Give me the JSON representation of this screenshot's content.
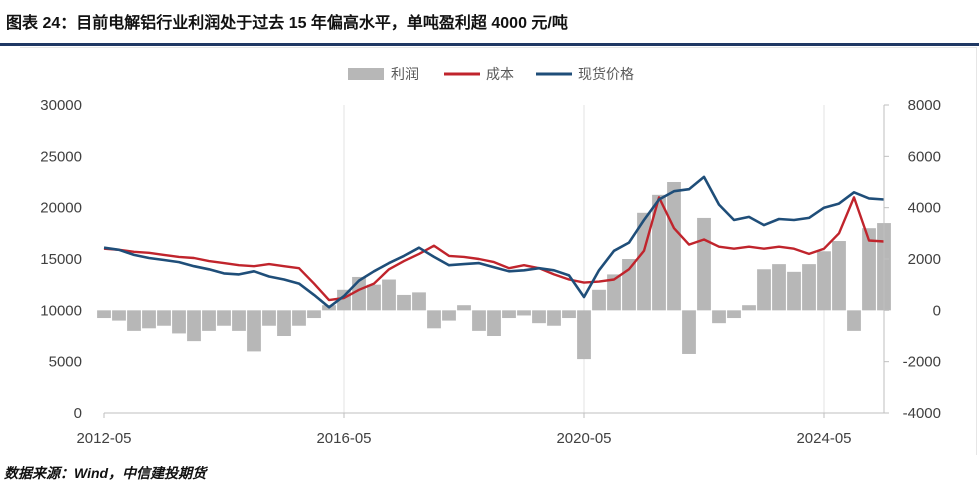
{
  "title": "图表 24：目前电解铝行业利润处于过去 15 年偏高水平，单吨盈利超 4000 元/吨",
  "source": "数据来源：Wind，中信建投期货",
  "colors": {
    "profit": "#b7b7b7",
    "cost": "#c0242c",
    "price": "#1f4e79",
    "title_rule": "#1f3864"
  },
  "chart_data": {
    "type": "line",
    "x_start": "2012-05",
    "x_end": "2025-05",
    "x_ticks": [
      "2012-05",
      "2016-05",
      "2020-05",
      "2024-05"
    ],
    "y_left": {
      "lim": [
        0,
        30000
      ],
      "ticks": [
        "0",
        "5000",
        "10000",
        "15000",
        "20000",
        "25000",
        "30000"
      ]
    },
    "y_right": {
      "lim": [
        -4000,
        8000
      ],
      "ticks": [
        "-4000",
        "-2000",
        "0",
        "2000",
        "4000",
        "6000",
        "8000"
      ]
    },
    "legend": {
      "position": "top",
      "items": [
        "利润",
        "成本",
        "现货价格"
      ]
    },
    "x": [
      "2012-05",
      "2012-08",
      "2012-11",
      "2013-02",
      "2013-05",
      "2013-08",
      "2013-11",
      "2014-02",
      "2014-05",
      "2014-08",
      "2014-11",
      "2015-02",
      "2015-05",
      "2015-08",
      "2015-11",
      "2016-02",
      "2016-05",
      "2016-08",
      "2016-11",
      "2017-02",
      "2017-05",
      "2017-08",
      "2017-11",
      "2018-02",
      "2018-05",
      "2018-08",
      "2018-11",
      "2019-02",
      "2019-05",
      "2019-08",
      "2019-11",
      "2020-02",
      "2020-05",
      "2020-08",
      "2020-11",
      "2021-02",
      "2021-05",
      "2021-08",
      "2021-11",
      "2022-02",
      "2022-05",
      "2022-08",
      "2022-11",
      "2023-02",
      "2023-05",
      "2023-08",
      "2023-11",
      "2024-02",
      "2024-05",
      "2024-08",
      "2024-11",
      "2025-02",
      "2025-05"
    ],
    "series": [
      {
        "name": "利润",
        "kind": "bar",
        "axis": "right",
        "values": [
          -300,
          -400,
          -800,
          -700,
          -600,
          -900,
          -1200,
          -800,
          -600,
          -800,
          -1600,
          -600,
          -1000,
          -600,
          -300,
          200,
          800,
          1300,
          1000,
          1200,
          600,
          700,
          -700,
          -400,
          200,
          -800,
          -1000,
          -300,
          -200,
          -500,
          -600,
          -300,
          -1900,
          800,
          1400,
          2000,
          3800,
          4500,
          5000,
          -1700,
          3600,
          -500,
          -300,
          200,
          1600,
          1800,
          1500,
          1800,
          2300,
          2700,
          -800,
          3200,
          3400
        ]
      },
      {
        "name": "成本",
        "kind": "line",
        "axis": "left",
        "values": [
          16000,
          15900,
          15700,
          15600,
          15400,
          15200,
          15100,
          14800,
          14600,
          14400,
          14300,
          14500,
          14300,
          14100,
          12600,
          11000,
          11200,
          12000,
          12600,
          14000,
          14800,
          15500,
          16300,
          15300,
          15200,
          15000,
          14700,
          14100,
          14400,
          14100,
          13500,
          13000,
          12700,
          12800,
          13000,
          14000,
          15800,
          21000,
          18000,
          16400,
          16900,
          16200,
          16000,
          16200,
          16000,
          16200,
          16000,
          15500,
          16000,
          17500,
          21000,
          16800,
          16700
        ]
      },
      {
        "name": "现货价格",
        "kind": "line",
        "axis": "left",
        "values": [
          16100,
          15900,
          15400,
          15100,
          14900,
          14700,
          14300,
          14000,
          13600,
          13500,
          13800,
          13300,
          13000,
          12600,
          11500,
          10300,
          11400,
          12900,
          13800,
          14600,
          15300,
          16100,
          15200,
          14400,
          14500,
          14600,
          14200,
          13800,
          13900,
          14100,
          13900,
          13400,
          11300,
          13900,
          15800,
          16600,
          18800,
          20800,
          21600,
          21800,
          23000,
          20300,
          18800,
          19100,
          18300,
          18900,
          18800,
          19000,
          20000,
          20400,
          21500,
          20900,
          20800
        ]
      }
    ]
  }
}
